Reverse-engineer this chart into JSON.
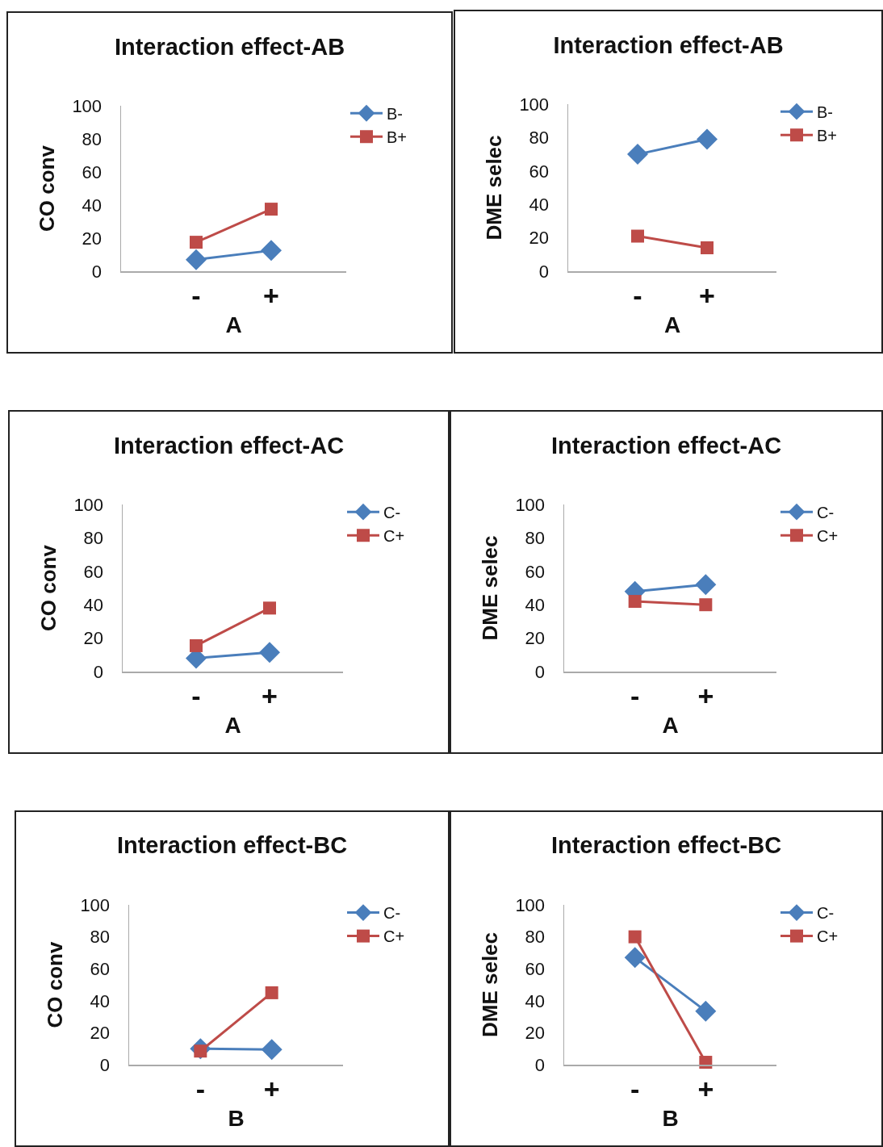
{
  "chart_data": [
    {
      "type": "line",
      "title": "Interaction effect-AB",
      "xlabel": "A",
      "ylabel": "CO conv",
      "categories": [
        "-",
        "+"
      ],
      "ylim": [
        0,
        100
      ],
      "yticks": [
        0,
        20,
        40,
        60,
        80,
        100
      ],
      "grid": false,
      "legend": "top right",
      "series": [
        {
          "name": "B-",
          "color": "#4a7ebb",
          "marker": "diamond",
          "values": [
            7,
            12.5
          ]
        },
        {
          "name": "B+",
          "color": "#be4b48",
          "marker": "square",
          "values": [
            17.5,
            37.5
          ]
        }
      ]
    },
    {
      "type": "line",
      "title": "Interaction effect-AB",
      "xlabel": "A",
      "ylabel": "DME selec",
      "categories": [
        "-",
        "+"
      ],
      "ylim": [
        0,
        100
      ],
      "yticks": [
        0,
        20,
        40,
        60,
        80,
        100
      ],
      "grid": false,
      "legend": "top right",
      "series": [
        {
          "name": "B-",
          "color": "#4a7ebb",
          "marker": "diamond",
          "values": [
            70,
            79
          ]
        },
        {
          "name": "B+",
          "color": "#be4b48",
          "marker": "square",
          "values": [
            21,
            14
          ]
        }
      ]
    },
    {
      "type": "line",
      "title": "Interaction effect-AC",
      "xlabel": "A",
      "ylabel": "CO conv",
      "categories": [
        "-",
        "+"
      ],
      "ylim": [
        0,
        100
      ],
      "yticks": [
        0,
        20,
        40,
        60,
        80,
        100
      ],
      "grid": false,
      "legend": "top right",
      "series": [
        {
          "name": "C-",
          "color": "#4a7ebb",
          "marker": "diamond",
          "values": [
            8,
            11.5
          ]
        },
        {
          "name": "C+",
          "color": "#be4b48",
          "marker": "square",
          "values": [
            15.5,
            38
          ]
        }
      ]
    },
    {
      "type": "line",
      "title": "Interaction effect-AC",
      "xlabel": "A",
      "ylabel": "DME selec",
      "categories": [
        "-",
        "+"
      ],
      "ylim": [
        0,
        100
      ],
      "yticks": [
        0,
        20,
        40,
        60,
        80,
        100
      ],
      "grid": false,
      "legend": "top right",
      "series": [
        {
          "name": "C-",
          "color": "#4a7ebb",
          "marker": "diamond",
          "values": [
            48,
            52
          ]
        },
        {
          "name": "C+",
          "color": "#be4b48",
          "marker": "square",
          "values": [
            42,
            40
          ]
        }
      ]
    },
    {
      "type": "line",
      "title": "Interaction effect-BC",
      "xlabel": "B",
      "ylabel": "CO conv",
      "categories": [
        "-",
        "+"
      ],
      "ylim": [
        0,
        100
      ],
      "yticks": [
        0,
        20,
        40,
        60,
        80,
        100
      ],
      "grid": false,
      "legend": "top right",
      "series": [
        {
          "name": "C-",
          "color": "#4a7ebb",
          "marker": "diamond",
          "values": [
            10,
            9.5
          ]
        },
        {
          "name": "C+",
          "color": "#be4b48",
          "marker": "square",
          "values": [
            8.5,
            45
          ]
        }
      ]
    },
    {
      "type": "line",
      "title": "Interaction effect-BC",
      "xlabel": "B",
      "ylabel": "DME selec",
      "categories": [
        "-",
        "+"
      ],
      "ylim": [
        0,
        100
      ],
      "yticks": [
        0,
        20,
        40,
        60,
        80,
        100
      ],
      "grid": false,
      "legend": "top right",
      "series": [
        {
          "name": "C-",
          "color": "#4a7ebb",
          "marker": "diamond",
          "values": [
            67,
            33.5
          ]
        },
        {
          "name": "C+",
          "color": "#be4b48",
          "marker": "square",
          "values": [
            80,
            1.5
          ]
        }
      ]
    }
  ]
}
